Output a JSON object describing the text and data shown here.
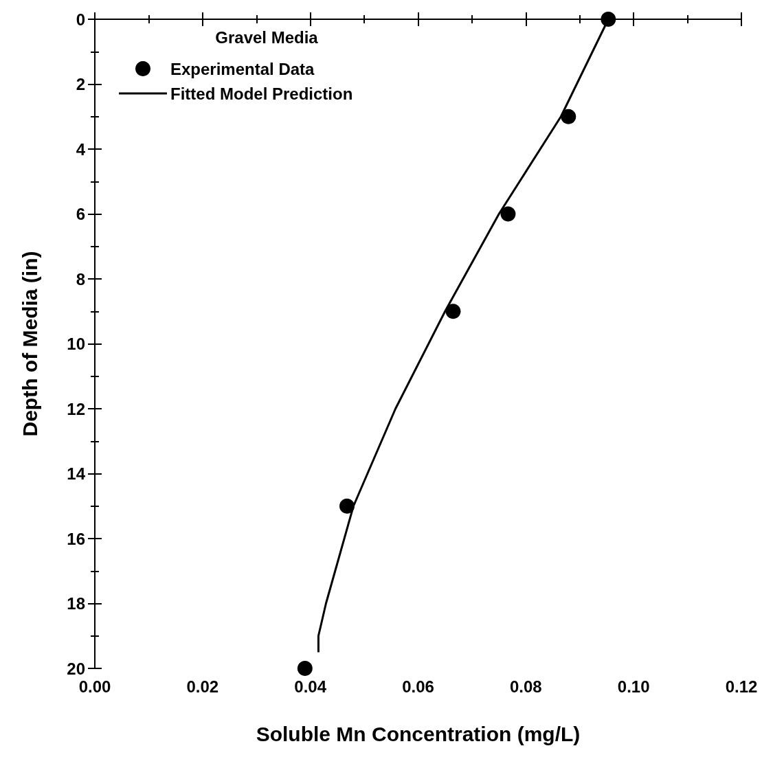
{
  "chart_data": {
    "type": "scatter",
    "xlabel": "Soluble Mn Concentration (mg/L)",
    "ylabel": "Depth of Media (in)",
    "legend_title": "Gravel Media",
    "legend": "top left",
    "grid": false,
    "xlim": [
      0,
      0.12
    ],
    "xticks": [
      {
        "value": 0,
        "label": "0.00"
      },
      {
        "value": 0.02,
        "label": "0.02"
      },
      {
        "value": 0.04,
        "label": "0.04"
      },
      {
        "value": 0.06,
        "label": "0.06"
      },
      {
        "value": 0.08,
        "label": "0.08"
      },
      {
        "value": 0.1,
        "label": "0.10"
      },
      {
        "value": 0.12,
        "label": "0.12"
      }
    ],
    "ylim": [
      20,
      0
    ],
    "yticks": [
      0,
      2,
      4,
      6,
      8,
      10,
      12,
      14,
      16,
      18,
      20
    ],
    "series": [
      {
        "name": "Experimental Data",
        "type": "scatter",
        "marker": "circle",
        "color": "#000000",
        "x": [
          0.0953,
          0.0879,
          0.0767,
          0.0665,
          0.0468,
          0.039
        ],
        "values": [
          0,
          3,
          6,
          9,
          15,
          20
        ]
      },
      {
        "name": "Fitted Model Prediction",
        "type": "line",
        "marker": "none",
        "line_style": "solid",
        "color": "#000000",
        "x": [
          0.0953,
          0.0865,
          0.075,
          0.065,
          0.0558,
          0.048,
          0.0429,
          0.0415,
          0.0415
        ],
        "values": [
          0,
          3,
          6,
          9,
          12,
          15,
          18,
          19,
          19.5
        ]
      }
    ]
  }
}
